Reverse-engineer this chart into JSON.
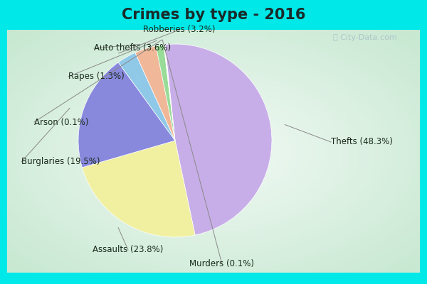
{
  "title": "Crimes by type - 2016",
  "labels": [
    "Thefts",
    "Assaults",
    "Burglaries",
    "Robberies",
    "Auto thefts",
    "Rapes",
    "Arson",
    "Murders"
  ],
  "percentages": [
    48.3,
    23.8,
    19.5,
    3.2,
    3.6,
    1.3,
    0.1,
    0.1
  ],
  "colors": [
    "#c8aee8",
    "#f0f0a0",
    "#8888dd",
    "#90c8e8",
    "#f0b898",
    "#98dc98",
    "#f0a8a8",
    "#d8d8d8"
  ],
  "background_cyan": "#00e8e8",
  "background_inner": "#d8f0e0",
  "title_color": "#1a2a2a",
  "label_color": "#1a2a1a",
  "label_fontsize": 8.5,
  "title_fontsize": 15,
  "top_bar_height": 0.12,
  "bottom_bar_height": 0.05,
  "side_bar_width": 0.02
}
